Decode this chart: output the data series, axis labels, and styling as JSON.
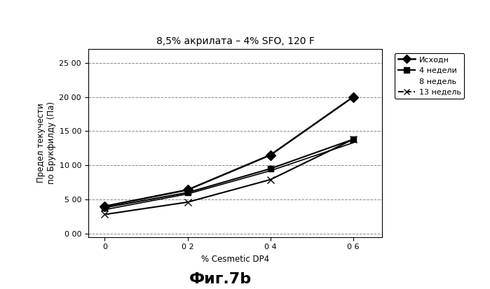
{
  "title": "8,5% акрилата – 4% SFO, 120 F",
  "xlabel": "% Cesmetic DP4",
  "ylabel": "Предел текучести\nпо Брукфилду (Па)",
  "caption": "Фиг.7b",
  "x": [
    0,
    0.2,
    0.4,
    0.6
  ],
  "xtick_labels": [
    "0",
    "0 2",
    "0 4",
    "0 6"
  ],
  "yticks": [
    0,
    500,
    1000,
    1500,
    2000,
    2500
  ],
  "ytick_labels": [
    "0 00",
    "5 00",
    "10 00",
    "15 00",
    "20 00",
    "25 00"
  ],
  "ylim": [
    -50,
    2700
  ],
  "xlim": [
    -0.04,
    0.67
  ],
  "series": [
    {
      "label": "Исходн",
      "y": [
        400,
        640,
        1150,
        2000
      ],
      "color": "#000000",
      "marker": "D",
      "linestyle": "-",
      "linewidth": 1.8,
      "markersize": 7
    },
    {
      "label": "4 недели",
      "y": [
        380,
        600,
        950,
        1380
      ],
      "color": "#000000",
      "marker": "s",
      "linestyle": "-",
      "linewidth": 1.5,
      "markersize": 6
    },
    {
      "label": "8 недель",
      "y": [
        350,
        580,
        920,
        1330
      ],
      "color": "#000000",
      "marker": null,
      "linestyle": "-",
      "linewidth": 1.2,
      "markersize": 5
    },
    {
      "label": "13 недель",
      "y": [
        280,
        460,
        790,
        1380
      ],
      "color": "#000000",
      "marker": "x",
      "linestyle": "-",
      "linewidth": 1.5,
      "markersize": 7
    }
  ],
  "grid_linestyle": "--",
  "grid_color": "#888888",
  "grid_linewidth": 0.7,
  "background_color": "#ffffff",
  "title_fontsize": 10,
  "label_fontsize": 8.5,
  "tick_fontsize": 8,
  "legend_fontsize": 8,
  "caption_fontsize": 16
}
